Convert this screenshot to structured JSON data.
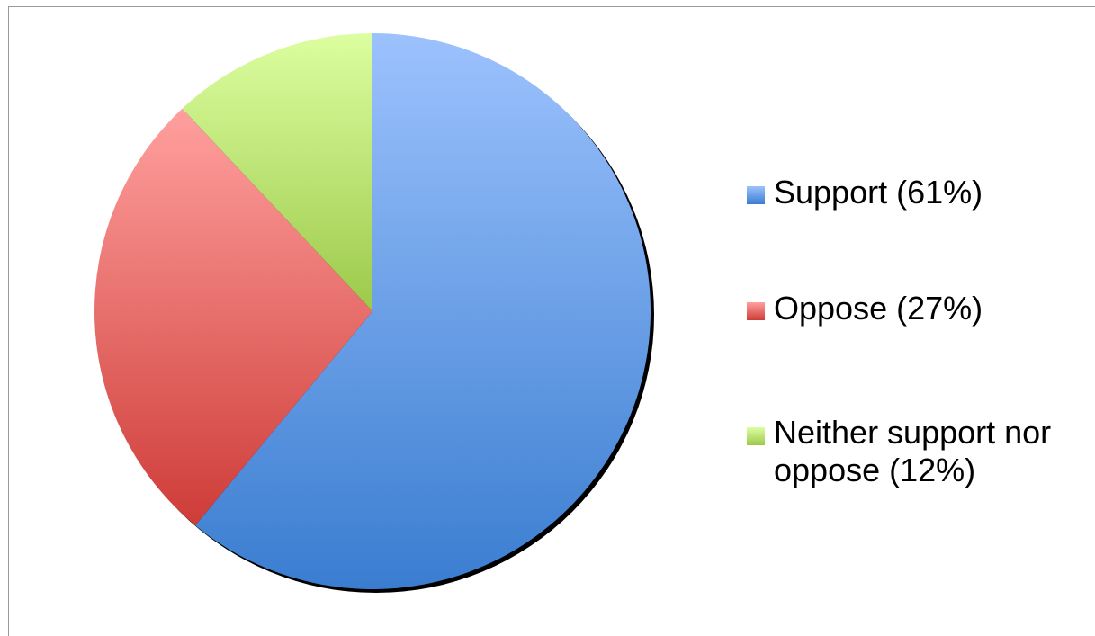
{
  "chart_data": {
    "type": "pie",
    "title": "",
    "legend_position": "right",
    "slices": [
      {
        "label": "Support (61%)",
        "label_lines": [
          "Support (61%)"
        ],
        "value": 61,
        "color": "#4f81bd",
        "color_light": "#9cc2fd",
        "color_dark": "#3a7dd0"
      },
      {
        "label": "Oppose (27%)",
        "label_lines": [
          "Oppose (27%)"
        ],
        "value": 27,
        "color": "#c0504d",
        "color_light": "#ffa09e",
        "color_dark": "#ce3c38"
      },
      {
        "label": "Neither support nor oppose (12%)",
        "label_lines": [
          "Neither support nor",
          "oppose (12%)"
        ],
        "value": 12,
        "color": "#9bbb59",
        "color_light": "#dcfea0",
        "color_dark": "#9cc94a"
      }
    ]
  }
}
